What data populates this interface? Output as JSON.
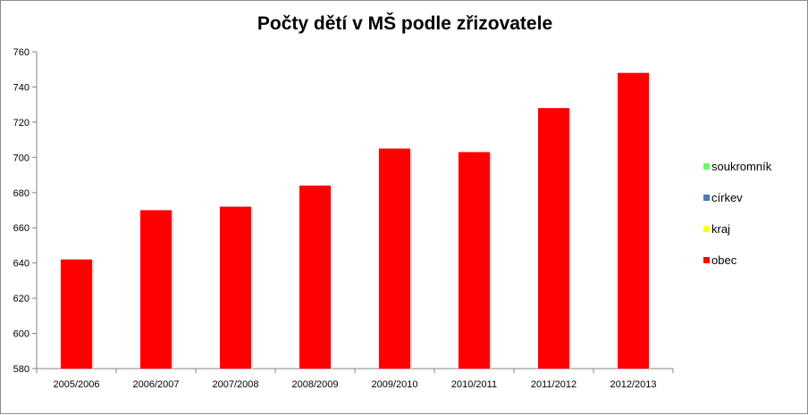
{
  "chart_data": {
    "type": "bar",
    "title": "Počty dětí v MŠ podle zřizovatele",
    "categories": [
      "2005/2006",
      "2006/2007",
      "2007/2008",
      "2008/2009",
      "2009/2010",
      "2010/2011",
      "2011/2012",
      "2012/2013"
    ],
    "series": [
      {
        "name": "soukromník",
        "color": "#66ff66",
        "values": [
          0,
          0,
          0,
          0,
          0,
          0,
          0,
          0
        ]
      },
      {
        "name": "církev",
        "color": "#4a7ebb",
        "values": [
          0,
          0,
          0,
          0,
          0,
          0,
          0,
          0
        ]
      },
      {
        "name": "kraj",
        "color": "#ffff00",
        "values": [
          0,
          0,
          0,
          0,
          0,
          0,
          0,
          0
        ]
      },
      {
        "name": "obec",
        "color": "#ff0000",
        "values": [
          642,
          670,
          672,
          684,
          705,
          703,
          728,
          748
        ]
      }
    ],
    "ylim": [
      580,
      760
    ],
    "yticks": [
      580,
      600,
      620,
      640,
      660,
      680,
      700,
      720,
      740,
      760
    ],
    "legend_position": "right",
    "grid": false
  }
}
